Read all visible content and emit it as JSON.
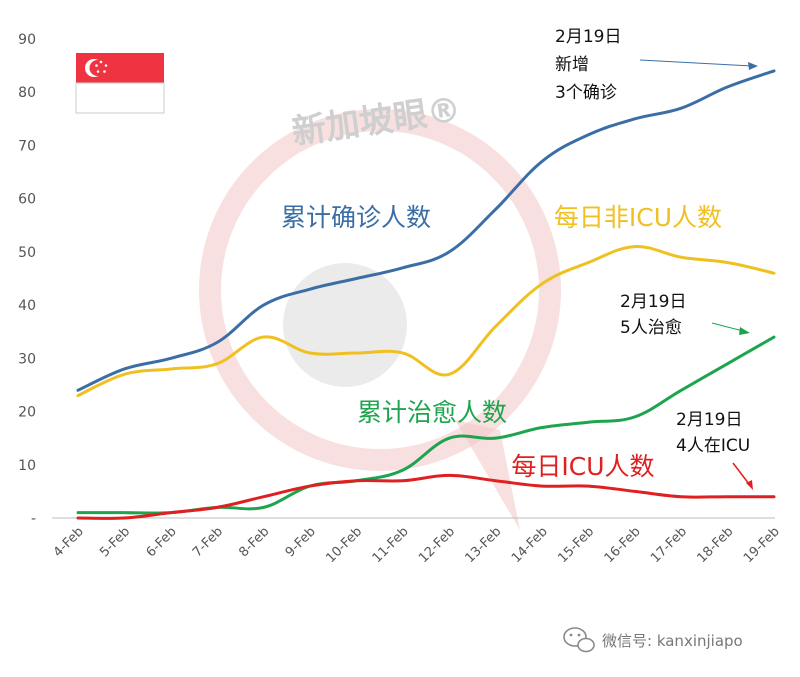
{
  "chart_data": {
    "type": "line",
    "title": "",
    "xlabel": "",
    "ylabel": "",
    "categories": [
      "4-Feb",
      "5-Feb",
      "6-Feb",
      "7-Feb",
      "8-Feb",
      "9-Feb",
      "10-Feb",
      "11-Feb",
      "12-Feb",
      "13-Feb",
      "14-Feb",
      "15-Feb",
      "16-Feb",
      "17-Feb",
      "18-Feb",
      "19-Feb"
    ],
    "ylim": [
      0,
      90
    ],
    "yticks": [
      0,
      10,
      20,
      30,
      40,
      50,
      60,
      70,
      80,
      90
    ],
    "ytick_labels": [
      "-",
      "10",
      "20",
      "30",
      "40",
      "50",
      "60",
      "70",
      "80",
      "90"
    ],
    "grid": false,
    "legend": "none",
    "series": [
      {
        "name": "累计确诊人数",
        "color": "#3b6ea5",
        "values": [
          24,
          28,
          30,
          33,
          40,
          43,
          45,
          47,
          50,
          58,
          67,
          72,
          75,
          77,
          81,
          84
        ]
      },
      {
        "name": "每日非ICU人数",
        "color": "#f0c020",
        "values": [
          23,
          27,
          28,
          29,
          34,
          31,
          31,
          31,
          27,
          36,
          44,
          48,
          51,
          49,
          48,
          46
        ]
      },
      {
        "name": "累计治愈人数",
        "color": "#1ea44e",
        "values": [
          1,
          1,
          1,
          2,
          2,
          6,
          7,
          9,
          15,
          15,
          17,
          18,
          19,
          24,
          29,
          34
        ]
      },
      {
        "name": "每日ICU人数",
        "color": "#e02020",
        "values": [
          0,
          0,
          1,
          2,
          4,
          6,
          7,
          7,
          8,
          7,
          6,
          6,
          5,
          4,
          4,
          4
        ]
      }
    ],
    "annotations": [
      {
        "lines": [
          "2月19日",
          "新增",
          "3个确诊"
        ],
        "target_series": 0
      },
      {
        "lines": [
          "2月19日",
          "5人治愈"
        ],
        "target_series": 2
      },
      {
        "lines": [
          "2月19日",
          "4人在ICU"
        ],
        "target_series": 3
      }
    ]
  },
  "watermark": "新加坡眼®",
  "footer": {
    "text": "微信号: kanxinjiapo",
    "icon": "wechat-icon"
  },
  "flag": {
    "name": "singapore-flag",
    "colors": {
      "red": "#ef3340",
      "white": "#ffffff"
    }
  }
}
